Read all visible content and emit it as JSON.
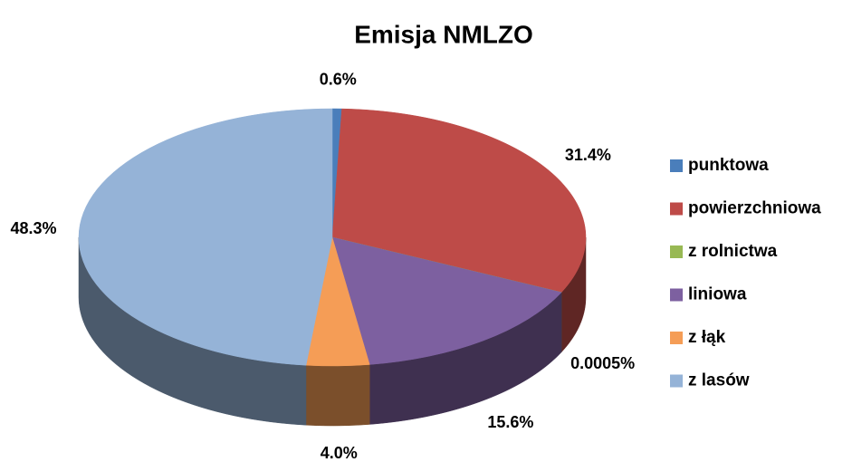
{
  "chart_data": {
    "type": "pie3d",
    "title": "Emisja NMLZO",
    "categories": [
      "punktowa",
      "powierzchniowa",
      "z rolnictwa",
      "liniowa",
      "z łąk",
      "z lasów"
    ],
    "values": [
      0.6,
      31.4,
      0.0005,
      15.6,
      4.0,
      48.3
    ],
    "value_labels": [
      "0.6%",
      "31.4%",
      "0.0005%",
      "15.6%",
      "4.0%",
      "48.3%"
    ],
    "colors": [
      "#4a7ebb",
      "#be4b48",
      "#98b954",
      "#7d60a0",
      "#f59d56",
      "#95b3d7"
    ],
    "legend": "right"
  }
}
